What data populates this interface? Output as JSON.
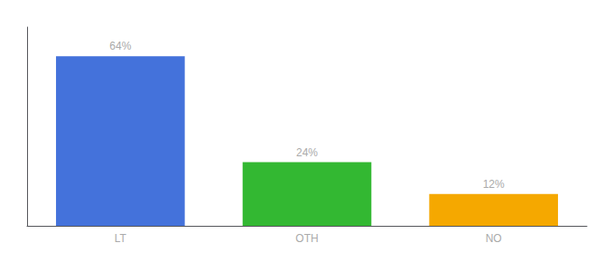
{
  "chart_data": {
    "type": "bar",
    "categories": [
      "LT",
      "OTH",
      "NO"
    ],
    "values": [
      64,
      24,
      12
    ],
    "value_labels": [
      "64%",
      "24%",
      "12%"
    ],
    "colors": [
      "#4472db",
      "#33b832",
      "#f5a800"
    ],
    "ylim": [
      0,
      75
    ],
    "data_labels": true,
    "tick_labels": "x",
    "grid": false
  }
}
